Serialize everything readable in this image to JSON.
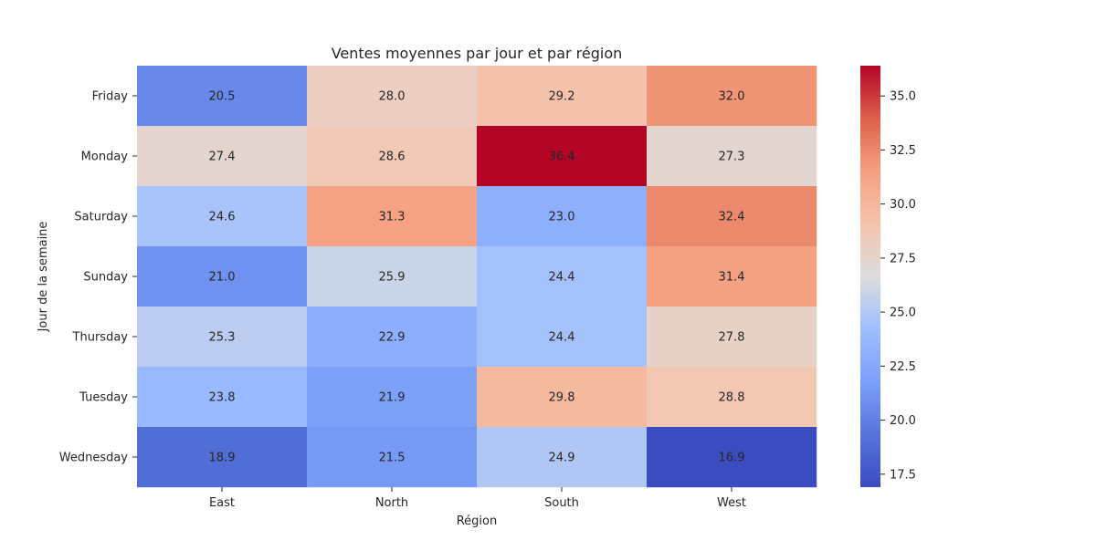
{
  "chart_data": {
    "type": "heatmap",
    "title": "Ventes moyennes par jour et par région",
    "xlabel": "Région",
    "ylabel": "Jour de la semaine",
    "x_categories": [
      "East",
      "North",
      "South",
      "West"
    ],
    "y_categories": [
      "Friday",
      "Monday",
      "Saturday",
      "Sunday",
      "Thursday",
      "Tuesday",
      "Wednesday"
    ],
    "values": [
      [
        20.5,
        28.0,
        29.2,
        32.0
      ],
      [
        27.4,
        28.6,
        36.4,
        27.3
      ],
      [
        24.6,
        31.3,
        23.0,
        32.4
      ],
      [
        21.0,
        25.9,
        24.4,
        31.4
      ],
      [
        25.3,
        22.9,
        24.4,
        27.8
      ],
      [
        23.8,
        21.9,
        29.8,
        28.8
      ],
      [
        18.9,
        21.5,
        24.9,
        16.9
      ]
    ],
    "value_format": "0.1f",
    "colormap": "coolwarm",
    "colorbar": {
      "min": 16.9,
      "max": 36.4,
      "ticks": [
        17.5,
        20.0,
        22.5,
        25.0,
        27.5,
        30.0,
        32.5,
        35.0
      ],
      "tick_labels": [
        "17.5",
        "20.0",
        "22.5",
        "25.0",
        "27.5",
        "30.0",
        "32.5",
        "35.0"
      ]
    },
    "annotation_colors": {
      "light": "#ffffff",
      "dark": "#262626"
    }
  }
}
